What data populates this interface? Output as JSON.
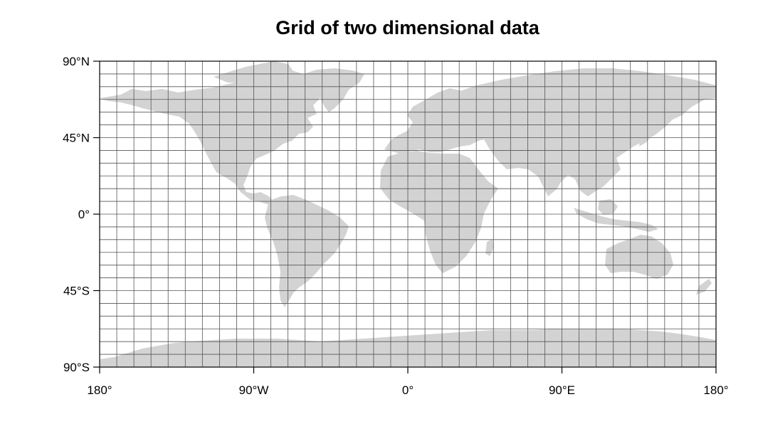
{
  "title": "Grid of two dimensional data",
  "map": {
    "projection": "cylindrical-equidistant",
    "lon_range": [
      -180,
      180
    ],
    "lat_range": [
      -90,
      90
    ],
    "grid_lon_spacing_deg": 10,
    "grid_lat_spacing_deg": 7.5,
    "land_color": "#d3d3d3",
    "grid_color": "#555555",
    "frame_color": "#000000",
    "background_color": "#ffffff"
  },
  "axes": {
    "y_ticks": [
      {
        "value": 90,
        "label": "90°N"
      },
      {
        "value": 45,
        "label": "45°N"
      },
      {
        "value": 0,
        "label": "0°"
      },
      {
        "value": -45,
        "label": "45°S"
      },
      {
        "value": -90,
        "label": "90°S"
      }
    ],
    "x_ticks": [
      {
        "value": -180,
        "label": "180°"
      },
      {
        "value": -90,
        "label": "90°W"
      },
      {
        "value": 0,
        "label": "0°"
      },
      {
        "value": 90,
        "label": "90°E"
      },
      {
        "value": 180,
        "label": "180°"
      }
    ]
  }
}
